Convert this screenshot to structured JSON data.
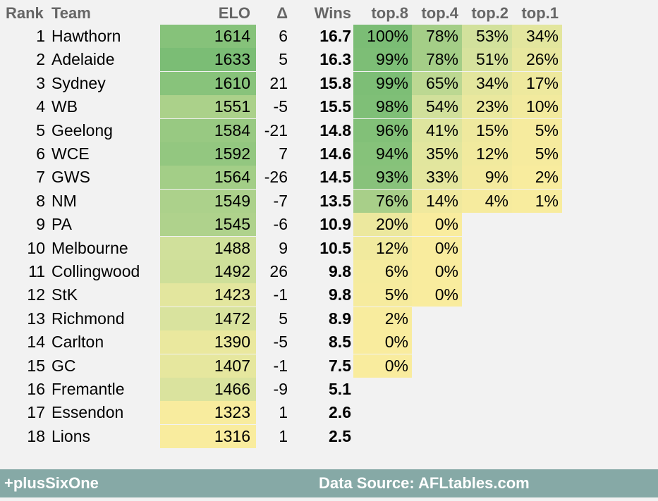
{
  "headers": {
    "rank": "Rank",
    "team": "Team",
    "elo": "ELO",
    "delta": "Δ",
    "wins": "Wins",
    "top8": "top.8",
    "top4": "top.4",
    "top2": "top.2",
    "top1": "top.1"
  },
  "footer": {
    "brand": "+plusSixOne",
    "source": "Data Source: AFLtables.com"
  },
  "colors": {
    "background": "#f2f2f2",
    "scale_low": "#f9ec9e",
    "scale_mid": "#d8e39e",
    "scale_high": "#7bbd75",
    "footer": "#86a9a6"
  },
  "chart_data": {
    "type": "table",
    "columns": [
      "Rank",
      "Team",
      "ELO",
      "Δ",
      "Wins",
      "top.8",
      "top.4",
      "top.2",
      "top.1"
    ],
    "rows": [
      {
        "rank": "1",
        "team": "Hawthorn",
        "elo": "1614",
        "delta": "6",
        "wins": "16.7",
        "top8": "100%",
        "top4": "78%",
        "top2": "53%",
        "top1": "34%"
      },
      {
        "rank": "2",
        "team": "Adelaide",
        "elo": "1633",
        "delta": "5",
        "wins": "16.3",
        "top8": "99%",
        "top4": "78%",
        "top2": "51%",
        "top1": "26%"
      },
      {
        "rank": "3",
        "team": "Sydney",
        "elo": "1610",
        "delta": "21",
        "wins": "15.8",
        "top8": "99%",
        "top4": "65%",
        "top2": "34%",
        "top1": "17%"
      },
      {
        "rank": "4",
        "team": "WB",
        "elo": "1551",
        "delta": "-5",
        "wins": "15.5",
        "top8": "98%",
        "top4": "54%",
        "top2": "23%",
        "top1": "10%"
      },
      {
        "rank": "5",
        "team": "Geelong",
        "elo": "1584",
        "delta": "-21",
        "wins": "14.8",
        "top8": "96%",
        "top4": "41%",
        "top2": "15%",
        "top1": "5%"
      },
      {
        "rank": "6",
        "team": "WCE",
        "elo": "1592",
        "delta": "7",
        "wins": "14.6",
        "top8": "94%",
        "top4": "35%",
        "top2": "12%",
        "top1": "5%"
      },
      {
        "rank": "7",
        "team": "GWS",
        "elo": "1564",
        "delta": "-26",
        "wins": "14.5",
        "top8": "93%",
        "top4": "33%",
        "top2": "9%",
        "top1": "2%"
      },
      {
        "rank": "8",
        "team": "NM",
        "elo": "1549",
        "delta": "-7",
        "wins": "13.5",
        "top8": "76%",
        "top4": "14%",
        "top2": "4%",
        "top1": "1%"
      },
      {
        "rank": "9",
        "team": "PA",
        "elo": "1545",
        "delta": "-6",
        "wins": "10.9",
        "top8": "20%",
        "top4": "0%",
        "top2": "",
        "top1": ""
      },
      {
        "rank": "10",
        "team": "Melbourne",
        "elo": "1488",
        "delta": "9",
        "wins": "10.5",
        "top8": "12%",
        "top4": "0%",
        "top2": "",
        "top1": ""
      },
      {
        "rank": "11",
        "team": "Collingwood",
        "elo": "1492",
        "delta": "26",
        "wins": "9.8",
        "top8": "6%",
        "top4": "0%",
        "top2": "",
        "top1": ""
      },
      {
        "rank": "12",
        "team": "StK",
        "elo": "1423",
        "delta": "-1",
        "wins": "9.8",
        "top8": "5%",
        "top4": "0%",
        "top2": "",
        "top1": ""
      },
      {
        "rank": "13",
        "team": "Richmond",
        "elo": "1472",
        "delta": "5",
        "wins": "8.9",
        "top8": "2%",
        "top4": "",
        "top2": "",
        "top1": ""
      },
      {
        "rank": "14",
        "team": "Carlton",
        "elo": "1390",
        "delta": "-5",
        "wins": "8.5",
        "top8": "0%",
        "top4": "",
        "top2": "",
        "top1": ""
      },
      {
        "rank": "15",
        "team": "GC",
        "elo": "1407",
        "delta": "-1",
        "wins": "7.5",
        "top8": "0%",
        "top4": "",
        "top2": "",
        "top1": ""
      },
      {
        "rank": "16",
        "team": "Fremantle",
        "elo": "1466",
        "delta": "-9",
        "wins": "5.1",
        "top8": "",
        "top4": "",
        "top2": "",
        "top1": ""
      },
      {
        "rank": "17",
        "team": "Essendon",
        "elo": "1323",
        "delta": "1",
        "wins": "2.6",
        "top8": "",
        "top4": "",
        "top2": "",
        "top1": ""
      },
      {
        "rank": "18",
        "team": "Lions",
        "elo": "1316",
        "delta": "1",
        "wins": "2.5",
        "top8": "",
        "top4": "",
        "top2": "",
        "top1": ""
      }
    ]
  }
}
